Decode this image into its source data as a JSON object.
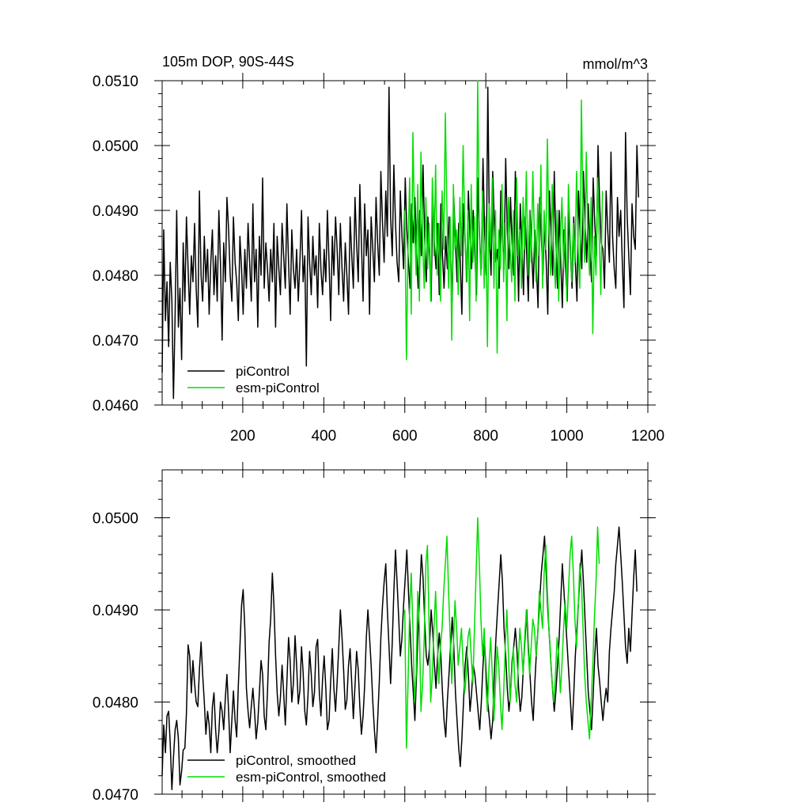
{
  "chart_data": [
    {
      "type": "line",
      "title": "105m DOP, 90S-44S",
      "units": "mmol/m^3",
      "xlim": [
        1,
        1200
      ],
      "ylim": [
        0.046,
        0.051
      ],
      "xticks": [
        200,
        400,
        600,
        800,
        1000,
        1200
      ],
      "xtick_labels": [
        "200",
        "400",
        "600",
        "800",
        "1000",
        "1200"
      ],
      "yticks": [
        0.046,
        0.047,
        0.048,
        0.049,
        0.05,
        0.051
      ],
      "ytick_labels": [
        "0.0460",
        "0.0470",
        "0.0480",
        "0.0490",
        "0.0500",
        "0.0510"
      ],
      "grid": false,
      "legend_position": "bottom-left",
      "series": [
        {
          "name": "piControl",
          "color": "#000000",
          "x_start": 1,
          "x_step": 4,
          "values": [
            0.0465,
            0.0487,
            0.0473,
            0.0479,
            0.0469,
            0.0482,
            0.0476,
            0.0461,
            0.0474,
            0.049,
            0.0472,
            0.0478,
            0.0467,
            0.0485,
            0.0476,
            0.0489,
            0.0481,
            0.0474,
            0.0483,
            0.0479,
            0.0488,
            0.0478,
            0.0472,
            0.0493,
            0.048,
            0.0476,
            0.0486,
            0.0479,
            0.0484,
            0.0474,
            0.0482,
            0.0487,
            0.0477,
            0.0483,
            0.0476,
            0.049,
            0.0482,
            0.047,
            0.0485,
            0.0479,
            0.0492,
            0.0487,
            0.048,
            0.0476,
            0.0489,
            0.0482,
            0.0479,
            0.0473,
            0.0486,
            0.0481,
            0.0474,
            0.0484,
            0.0478,
            0.0488,
            0.0482,
            0.0476,
            0.0491,
            0.0479,
            0.0484,
            0.0472,
            0.0486,
            0.048,
            0.0495,
            0.0478,
            0.0485,
            0.0481,
            0.0476,
            0.0484,
            0.0479,
            0.0488,
            0.0472,
            0.0486,
            0.0481,
            0.0477,
            0.0488,
            0.0483,
            0.0478,
            0.0491,
            0.0482,
            0.0474,
            0.0487,
            0.0481,
            0.0478,
            0.0484,
            0.0476,
            0.0482,
            0.049,
            0.0479,
            0.0483,
            0.0466,
            0.0489,
            0.0482,
            0.0477,
            0.0486,
            0.048,
            0.0483,
            0.0475,
            0.0488,
            0.0481,
            0.0477,
            0.0484,
            0.0479,
            0.049,
            0.0482,
            0.0473,
            0.0486,
            0.048,
            0.0489,
            0.0484,
            0.0477,
            0.0488,
            0.0481,
            0.0476,
            0.0485,
            0.048,
            0.0474,
            0.0489,
            0.0483,
            0.0478,
            0.0492,
            0.0485,
            0.0479,
            0.0494,
            0.0485,
            0.0476,
            0.0491,
            0.0483,
            0.0487,
            0.0474,
            0.0489,
            0.0484,
            0.0479,
            0.0492,
            0.0485,
            0.048,
            0.0496,
            0.0488,
            0.0482,
            0.0493,
            0.0486,
            0.0509,
            0.0489,
            0.0483,
            0.0497,
            0.0488,
            0.0482,
            0.0479,
            0.0493,
            0.0486,
            0.0481,
            0.0495,
            0.0487,
            0.0482,
            0.0478,
            0.0491,
            0.0485,
            0.0492,
            0.0484,
            0.0478,
            0.049,
            0.0483,
            0.0497,
            0.0486,
            0.0479,
            0.0489,
            0.0483,
            0.0476,
            0.0492,
            0.0485,
            0.0481,
            0.0488,
            0.0477,
            0.0491,
            0.0483,
            0.0478,
            0.0486,
            0.0481,
            0.0489,
            0.0483,
            0.0476,
            0.0492,
            0.0485,
            0.0479,
            0.0488,
            0.0482,
            0.0474,
            0.0491,
            0.0485,
            0.0479,
            0.0493,
            0.0486,
            0.0481,
            0.049,
            0.0483,
            0.0477,
            0.0495,
            0.0485,
            0.0481,
            0.0498,
            0.0487,
            0.048,
            0.0509,
            0.0486,
            0.048,
            0.0496,
            0.0488,
            0.0482,
            0.0484,
            0.0478,
            0.0493,
            0.0486,
            0.0481,
            0.0498,
            0.0487,
            0.0481,
            0.0492,
            0.0485,
            0.048,
            0.0496,
            0.0487,
            0.0476,
            0.0491,
            0.0485,
            0.0477,
            0.0489,
            0.0483,
            0.0476,
            0.049,
            0.0484,
            0.0478,
            0.0487,
            0.0481,
            0.0475,
            0.0492,
            0.0486,
            0.048,
            0.0488,
            0.0482,
            0.0474,
            0.0493,
            0.0486,
            0.048,
            0.0496,
            0.0485,
            0.0478,
            0.049,
            0.0482,
            0.0475,
            0.0487,
            0.0481,
            0.0476,
            0.049,
            0.0483,
            0.0478,
            0.0489,
            0.0482,
            0.0476,
            0.0493,
            0.0486,
            0.0481,
            0.0496,
            0.0488,
            0.0482,
            0.0491,
            0.0484,
            0.0479,
            0.0495,
            0.0488,
            0.0483,
            0.05,
            0.0491,
            0.0485,
            0.0484,
            0.0478,
            0.0493,
            0.0487,
            0.0482,
            0.0499,
            0.0486,
            0.0481,
            0.0478,
            0.0492,
            0.0486,
            0.049,
            0.0482,
            0.0475,
            0.0502,
            0.0489,
            0.0483,
            0.0477,
            0.0491,
            0.0486,
            0.0484,
            0.05,
            0.0492
          ]
        },
        {
          "name": "esm-piControl",
          "color": "#00dd00",
          "x_start": 600,
          "x_step": 4,
          "values": [
            0.049,
            0.0467,
            0.0484,
            0.0495,
            0.0474,
            0.0502,
            0.0488,
            0.048,
            0.0494,
            0.0476,
            0.0499,
            0.0485,
            0.0478,
            0.0492,
            0.0481,
            0.0488,
            0.0476,
            0.0495,
            0.0483,
            0.0497,
            0.048,
            0.0488,
            0.0476,
            0.0493,
            0.0484,
            0.0505,
            0.049,
            0.0478,
            0.0489,
            0.047,
            0.0494,
            0.0484,
            0.0487,
            0.0477,
            0.0492,
            0.0483,
            0.05,
            0.0488,
            0.0479,
            0.049,
            0.0473,
            0.0494,
            0.0482,
            0.0489,
            0.0476,
            0.051,
            0.0486,
            0.048,
            0.0493,
            0.0478,
            0.0489,
            0.0469,
            0.0491,
            0.0484,
            0.0495,
            0.0478,
            0.049,
            0.0468,
            0.0487,
            0.0481,
            0.0494,
            0.0479,
            0.0488,
            0.0473,
            0.0492,
            0.0484,
            0.0479,
            0.049,
            0.0476,
            0.0495,
            0.0483,
            0.0487,
            0.0478,
            0.0492,
            0.0484,
            0.0496,
            0.048,
            0.049,
            0.0482,
            0.0496,
            0.0486,
            0.0479,
            0.0491,
            0.0483,
            0.0497,
            0.0478,
            0.049,
            0.0484,
            0.0501,
            0.0487,
            0.048,
            0.0494,
            0.0483,
            0.0478,
            0.049,
            0.0476,
            0.0486,
            0.0492,
            0.0481,
            0.0489,
            0.0476,
            0.0494,
            0.0486,
            0.0479,
            0.0488,
            0.0482,
            0.0496,
            0.0484,
            0.0478,
            0.0507,
            0.0489,
            0.0482,
            0.0499,
            0.0486,
            0.048,
            0.0492,
            0.0471,
            0.0486,
            0.048,
            0.0495,
            0.0486,
            0.0477,
            0.0493
          ]
        }
      ]
    },
    {
      "type": "line",
      "xlim": [
        1,
        1200
      ],
      "ylim": [
        0.047,
        0.05052
      ],
      "xticks": [
        200,
        400,
        600,
        800,
        1000,
        1200
      ],
      "yticks": [
        0.047,
        0.048,
        0.049,
        0.05
      ],
      "ytick_labels": [
        "0.0470",
        "0.0480",
        "0.0490",
        "0.0500"
      ],
      "grid": false,
      "legend_position": "bottom-left",
      "series": [
        {
          "name": "piControl, smoothed",
          "color": "#000000",
          "x_start": 1,
          "x_step": 4,
          "values": [
            0.0472,
            0.04775,
            0.04745,
            0.04785,
            0.0479,
            0.04755,
            0.04705,
            0.0474,
            0.0477,
            0.0478,
            0.0476,
            0.0471,
            0.04725,
            0.04748,
            0.0475,
            0.04788,
            0.04862,
            0.0485,
            0.0481,
            0.04845,
            0.0482,
            0.048,
            0.04795,
            0.04835,
            0.04865,
            0.0483,
            0.048,
            0.04765,
            0.0479,
            0.04775,
            0.04745,
            0.04795,
            0.0481,
            0.0477,
            0.04745,
            0.04768,
            0.048,
            0.0479,
            0.0477,
            0.04805,
            0.0483,
            0.0479,
            0.04745,
            0.0478,
            0.04812,
            0.0478,
            0.04762,
            0.04818,
            0.0486,
            0.04905,
            0.04922,
            0.0488,
            0.04815,
            0.0479,
            0.04772,
            0.04795,
            0.04815,
            0.0479,
            0.0476,
            0.04778,
            0.0481,
            0.04845,
            0.0483,
            0.04785,
            0.0477,
            0.0481,
            0.04865,
            0.0489,
            0.0494,
            0.04905,
            0.0485,
            0.0481,
            0.04785,
            0.04805,
            0.0484,
            0.0481,
            0.04775,
            0.04822,
            0.0487,
            0.04845,
            0.048,
            0.0482,
            0.04872,
            0.0484,
            0.04798,
            0.04812,
            0.0486,
            0.04832,
            0.0479,
            0.04775,
            0.04808,
            0.04855,
            0.0483,
            0.04795,
            0.0481,
            0.0486,
            0.04868,
            0.0481,
            0.04785,
            0.04825,
            0.0485,
            0.04815,
            0.0477,
            0.0478,
            0.04822,
            0.04858,
            0.04815,
            0.0479,
            0.04822,
            0.0486,
            0.049,
            0.0487,
            0.04835,
            0.04792,
            0.04802,
            0.0484,
            0.04858,
            0.0482,
            0.04782,
            0.04818,
            0.04855,
            0.04835,
            0.04795,
            0.04765,
            0.04785,
            0.04818,
            0.0487,
            0.049,
            0.0487,
            0.0484,
            0.048,
            0.0477,
            0.04745,
            0.0478,
            0.04822,
            0.0487,
            0.04905,
            0.0493,
            0.0495,
            0.049,
            0.0486,
            0.0482,
            0.04865,
            0.0492,
            0.04965,
            0.0493,
            0.0489,
            0.0485,
            0.0487,
            0.04905,
            0.04935,
            0.04965,
            0.0492,
            0.0488,
            0.0484,
            0.0481,
            0.0478,
            0.0483,
            0.0488,
            0.0492,
            0.0496,
            0.04935,
            0.0489,
            0.0485,
            0.0484,
            0.0486,
            0.049,
            0.04875,
            0.04842,
            0.04815,
            0.0485,
            0.04875,
            0.0485,
            0.0481,
            0.0478,
            0.04762,
            0.048,
            0.0483,
            0.0486,
            0.04892,
            0.0486,
            0.0481,
            0.0478,
            0.0475,
            0.0473,
            0.0476,
            0.048,
            0.0484,
            0.0486,
            0.0483,
            0.0479,
            0.0481,
            0.0484,
            0.0483,
            0.0481,
            0.0479,
            0.0477,
            0.048,
            0.0484,
            0.04865,
            0.0483,
            0.048,
            0.0478,
            0.0476,
            0.0478,
            0.0483,
            0.0487,
            0.049,
            0.0493,
            0.0496,
            0.0493,
            0.0488,
            0.0485,
            0.04815,
            0.0479,
            0.0481,
            0.04845,
            0.0486,
            0.0488,
            0.04855,
            0.04815,
            0.0479,
            0.04805,
            0.0484,
            0.0487,
            0.049,
            0.0486,
            0.0483,
            0.048,
            0.0478,
            0.0482,
            0.04855,
            0.0488,
            0.0491,
            0.0494,
            0.0496,
            0.0498,
            0.0494,
            0.049,
            0.0487,
            0.0484,
            0.04812,
            0.0479,
            0.04812,
            0.0484,
            0.0487,
            0.0491,
            0.0495,
            0.0492,
            0.0489,
            0.0486,
            0.0483,
            0.048,
            0.0477,
            0.04808,
            0.0485,
            0.0488,
            0.0491,
            0.0494,
            0.04965,
            0.0493,
            0.0489,
            0.0485,
            0.0481,
            0.0479,
            0.0477,
            0.04808,
            0.0485,
            0.0488,
            0.0484,
            0.04822,
            0.048,
            0.0478,
            0.048,
            0.04815,
            0.048,
            0.04855,
            0.0488,
            0.049,
            0.0492,
            0.0495,
            0.0497,
            0.0499,
            0.0496,
            0.0493,
            0.04895,
            0.0486,
            0.04842,
            0.0488,
            0.04855,
            0.04895,
            0.04935,
            0.04965,
            0.0492
          ]
        },
        {
          "name": "esm-piControl, smoothed",
          "color": "#00dd00",
          "x_start": 600,
          "x_step": 4,
          "values": [
            0.049,
            0.0475,
            0.0482,
            0.049,
            0.0494,
            0.0488,
            0.048,
            0.0483,
            0.0492,
            0.0488,
            0.0479,
            0.0482,
            0.0487,
            0.0495,
            0.0497,
            0.0488,
            0.048,
            0.0483,
            0.0488,
            0.0492,
            0.0487,
            0.0482,
            0.0486,
            0.0488,
            0.0492,
            0.0495,
            0.0498,
            0.0492,
            0.0487,
            0.0482,
            0.0486,
            0.0491,
            0.0488,
            0.0484,
            0.0486,
            0.0488,
            0.0484,
            0.0481,
            0.0483,
            0.0487,
            0.0488,
            0.0485,
            0.0482,
            0.0488,
            0.0494,
            0.05,
            0.0495,
            0.0489,
            0.0485,
            0.0488,
            0.0482,
            0.0479,
            0.0484,
            0.0487,
            0.0483,
            0.0478,
            0.0482,
            0.0486,
            0.0484,
            0.048,
            0.0477,
            0.0481,
            0.0486,
            0.049,
            0.0485,
            0.048,
            0.0483,
            0.0486,
            0.0482,
            0.048,
            0.0484,
            0.0488,
            0.0486,
            0.0483,
            0.0487,
            0.049,
            0.0486,
            0.0483,
            0.0486,
            0.0489,
            0.0488,
            0.0485,
            0.0487,
            0.0492,
            0.049,
            0.0488,
            0.0494,
            0.0497,
            0.0492,
            0.0488,
            0.0485,
            0.0482,
            0.048,
            0.0483,
            0.0487,
            0.0485,
            0.0481,
            0.0484,
            0.0488,
            0.0491,
            0.0488,
            0.0492,
            0.0496,
            0.0498,
            0.0494,
            0.0489,
            0.0486,
            0.049,
            0.0495,
            0.0493,
            0.0488,
            0.0483,
            0.048,
            0.0478,
            0.0476,
            0.048,
            0.0484,
            0.0489,
            0.0493,
            0.0499,
            0.0495
          ]
        }
      ]
    }
  ]
}
